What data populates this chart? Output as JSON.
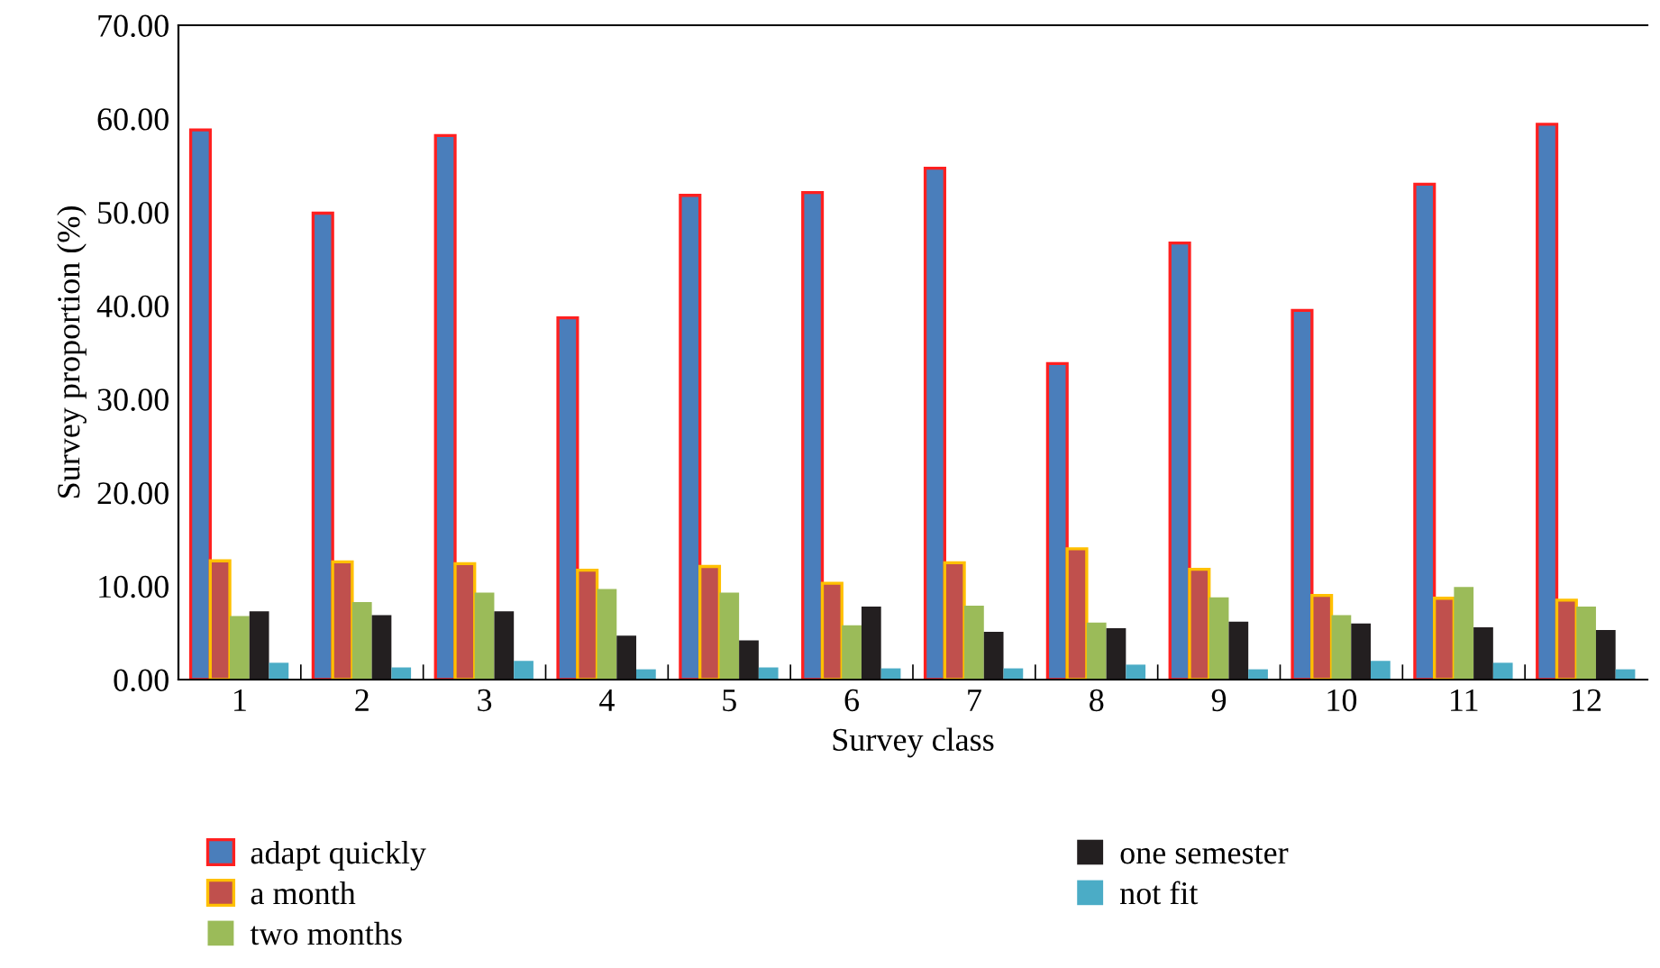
{
  "chart_data": {
    "type": "bar",
    "xlabel": "Survey class",
    "ylabel": "Survey proportion (%)",
    "categories": [
      "1",
      "2",
      "3",
      "4",
      "5",
      "6",
      "7",
      "8",
      "9",
      "10",
      "11",
      "12"
    ],
    "series": [
      {
        "name": "adapt quickly",
        "color": "#4a7ebb",
        "values": [
          58.8,
          49.9,
          58.2,
          38.7,
          51.8,
          52.1,
          54.7,
          33.8,
          46.7,
          39.5,
          53.0,
          59.4
        ]
      },
      {
        "name": "a month",
        "color": "#c0504d",
        "values": [
          12.7,
          12.6,
          12.4,
          11.7,
          12.1,
          10.3,
          12.5,
          14.0,
          11.8,
          9.0,
          8.7,
          8.5
        ]
      },
      {
        "name": "two months",
        "color": "#9bbb59",
        "values": [
          6.8,
          8.3,
          9.3,
          9.7,
          9.3,
          5.8,
          7.9,
          6.1,
          8.8,
          6.9,
          9.9,
          7.8
        ]
      },
      {
        "name": "one semester",
        "color": "#231f20",
        "values": [
          7.3,
          6.9,
          7.3,
          4.7,
          4.2,
          7.8,
          5.1,
          5.5,
          6.2,
          6.0,
          5.6,
          5.3
        ]
      },
      {
        "name": "not fit",
        "color": "#4bacc6",
        "values": [
          1.8,
          1.3,
          2.0,
          1.1,
          1.3,
          1.2,
          1.2,
          1.6,
          1.1,
          2.0,
          1.8,
          1.1
        ]
      }
    ],
    "ylim": [
      0,
      70
    ],
    "yticks": [
      {
        "value": 0,
        "label": "0.00"
      },
      {
        "value": 10,
        "label": "10.00"
      },
      {
        "value": 20,
        "label": "20.00"
      },
      {
        "value": 30,
        "label": "30.00"
      },
      {
        "value": 40,
        "label": "40.00"
      },
      {
        "value": 50,
        "label": "50.00"
      },
      {
        "value": 60,
        "label": "60.00"
      },
      {
        "value": 70,
        "label": "70.00"
      }
    ],
    "grid": false,
    "legend": "bottom"
  }
}
